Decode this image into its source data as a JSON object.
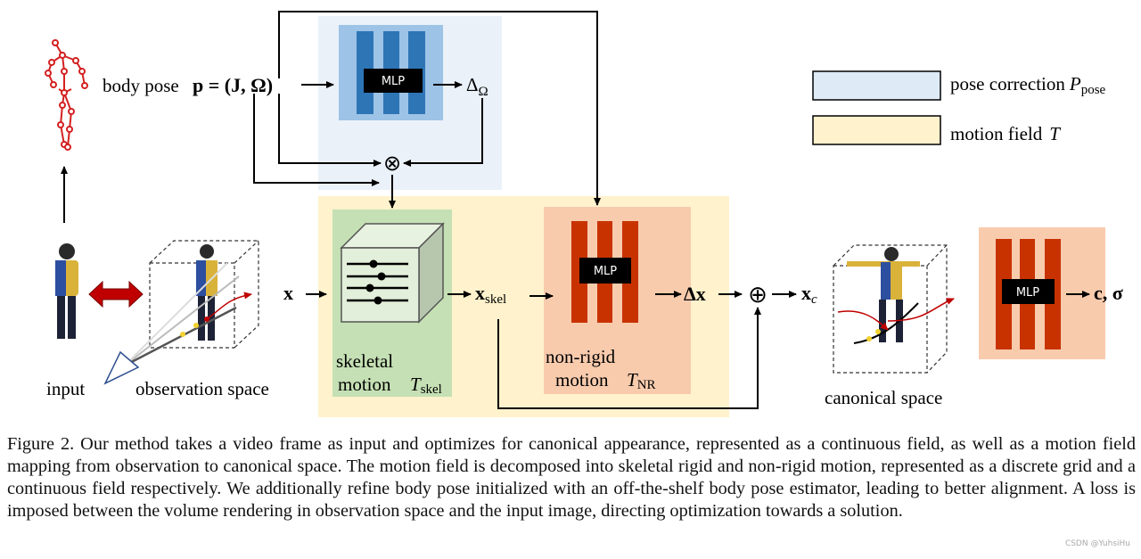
{
  "figure": {
    "body_pose_label": "body pose",
    "body_pose_formula": "p = (J, Ω)",
    "mlp_label": "MLP",
    "delta_omega": "Δ",
    "delta_omega_sub": "Ω",
    "otimes": "⊗",
    "oplus": "⊕",
    "x_label": "x",
    "x_skel": "x",
    "x_skel_sub": "skel",
    "delta_x": "Δx",
    "x_c": "x",
    "x_c_sub": "c",
    "output_label": "c, σ",
    "input_label": "input",
    "observation_space_label": "observation space",
    "canonical_space_label": "canonical space",
    "skeletal_line1": "skeletal",
    "skeletal_line2": "motion",
    "skeletal_T": "T",
    "skeletal_T_sub": "skel",
    "nonrigid_line1": "non-rigid",
    "nonrigid_line2": "motion",
    "nonrigid_T": "T",
    "nonrigid_T_sub": "NR"
  },
  "legend": {
    "items": [
      {
        "label": "pose correction",
        "symbol": "P",
        "symbol_sub": "pose",
        "color": "#deebf7"
      },
      {
        "label": "motion field",
        "symbol": "T",
        "color": "#fff2cc"
      }
    ]
  },
  "colors": {
    "pose_correction_bg": "#eaf1f9",
    "pose_mlp_box": "#9dc3e6",
    "pose_mlp_bars": "#2e75b6",
    "motion_field_bg": "#fff2cc",
    "skeletal_bg": "#c5e0b4",
    "nonrigid_bg": "#f8cbad",
    "nonrigid_bars": "#c83200",
    "skeleton": "#d42020"
  },
  "caption": "Figure 2. Our method takes a video frame as input and optimizes for canonical appearance, represented as a continuous field, as well as a motion field mapping from observation to canonical space. The motion field is decomposed into skeletal rigid and non-rigid motion, represented as a discrete grid and a continuous field respectively. We additionally refine body pose initialized with an off-the-shelf body pose estimator, leading to better alignment. A loss is imposed between the volume rendering in observation space and the input image, directing optimization towards a solution.",
  "watermark": "CSDN @YuhsiHu"
}
